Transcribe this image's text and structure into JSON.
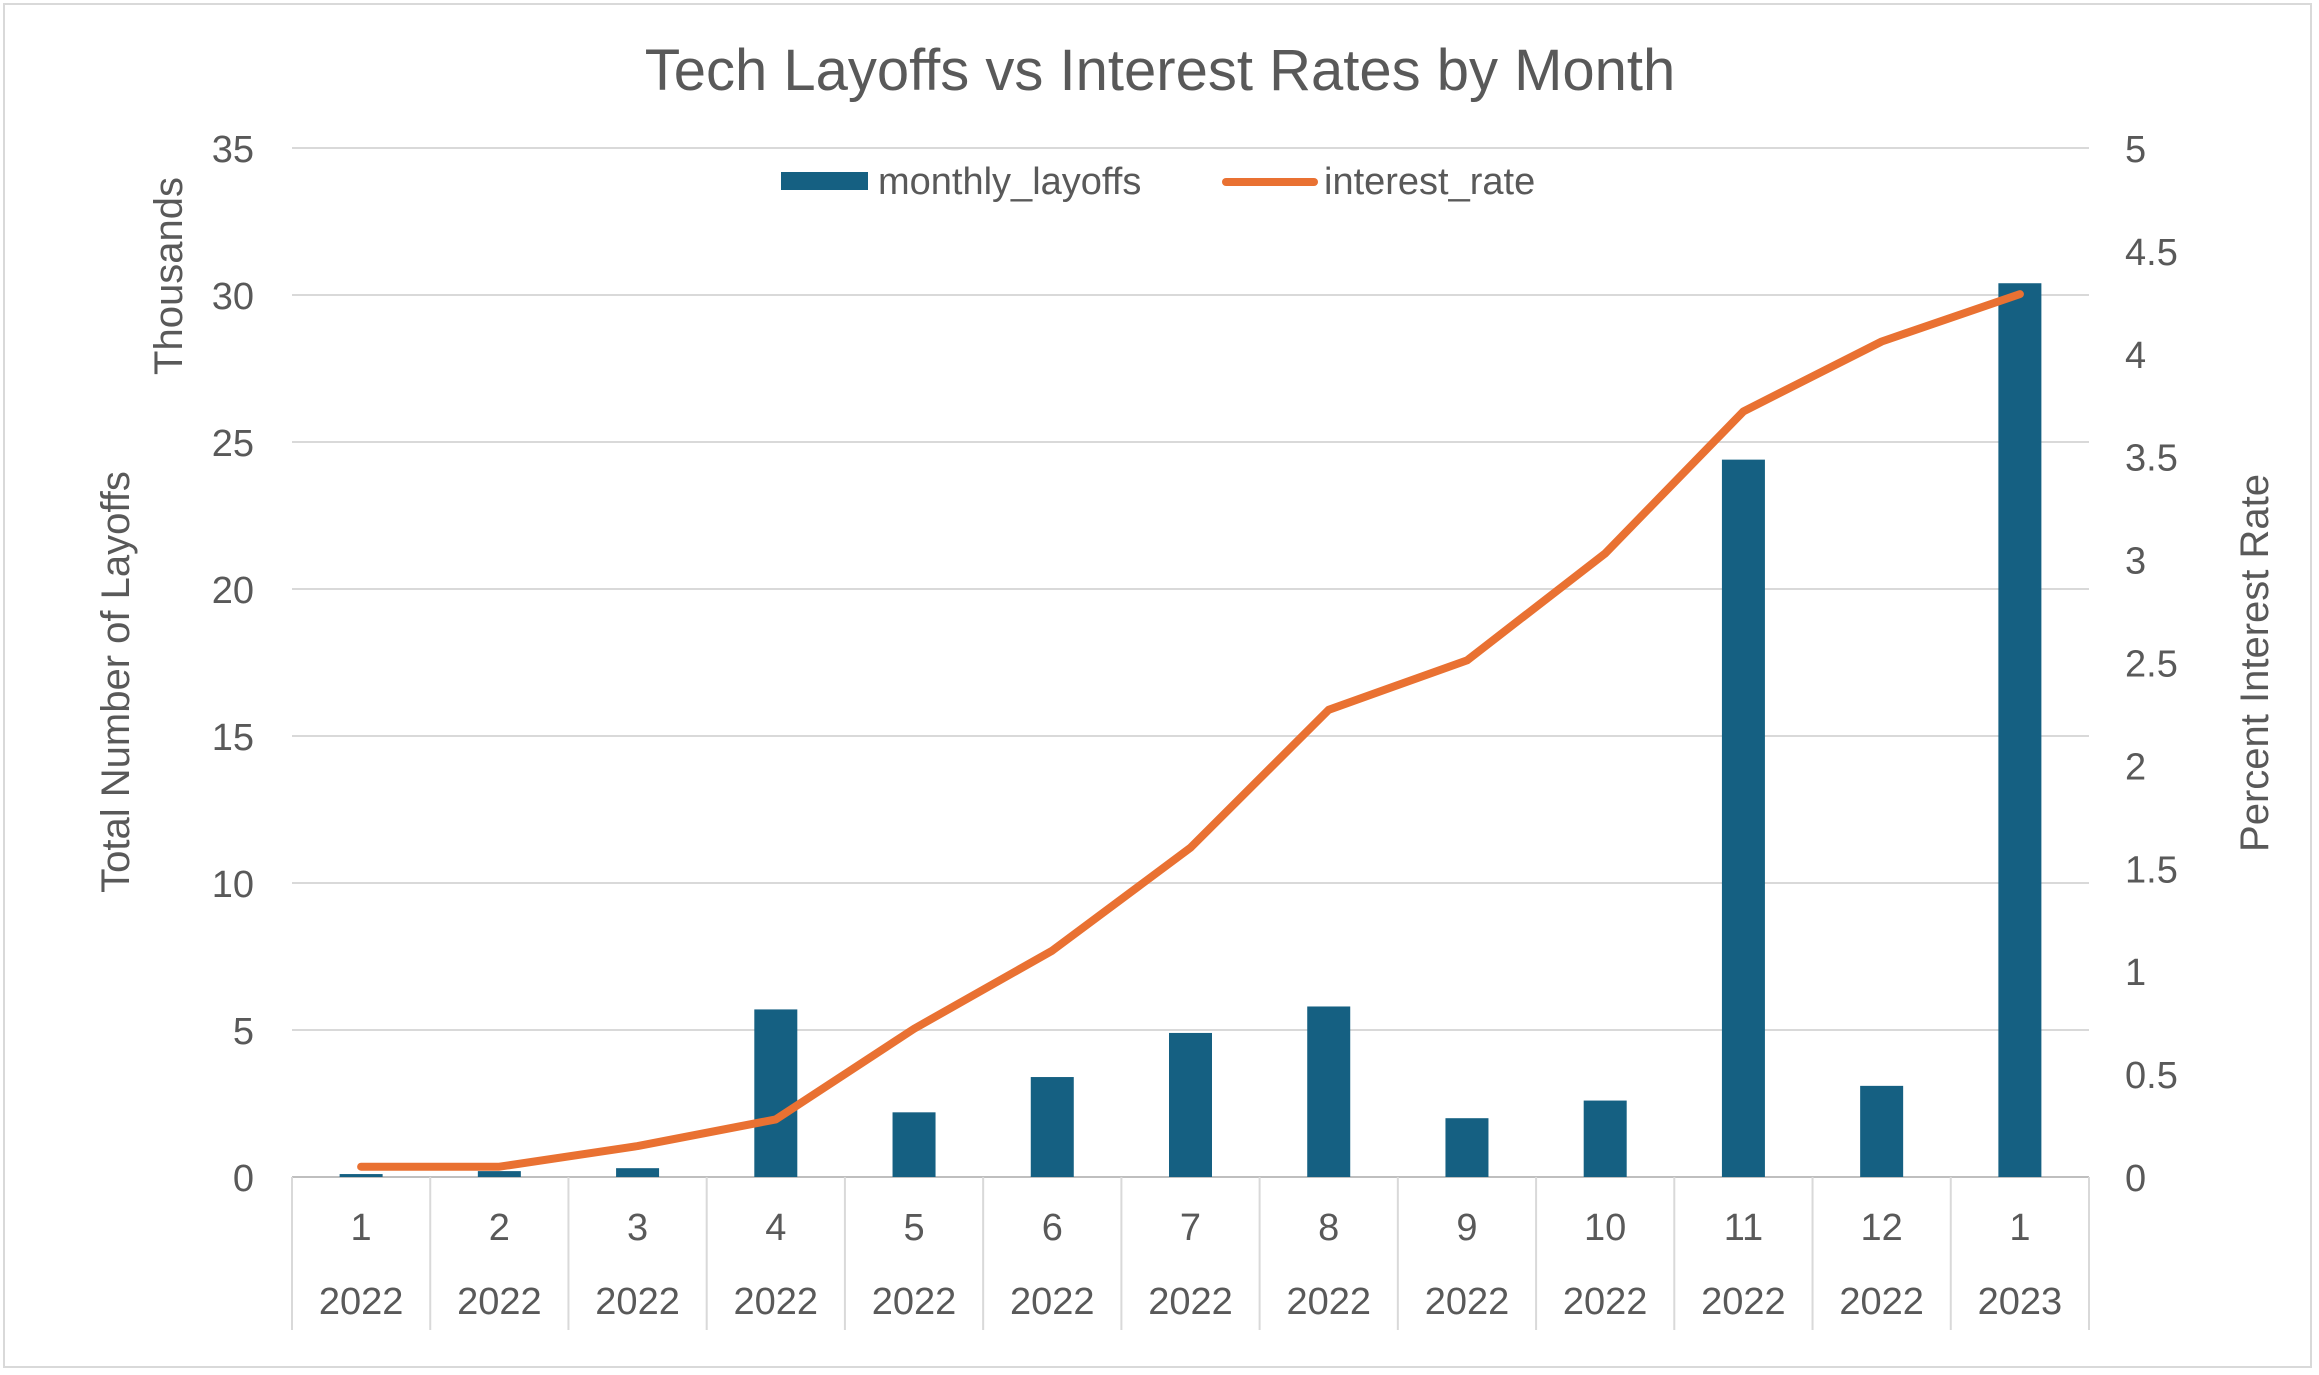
{
  "chart_data": {
    "type": "bar+line",
    "title": "Tech Layoffs vs Interest Rates by Month",
    "y_left_label": "Total Number of Layoffs",
    "y_left_units": "Thousands",
    "y_right_label": "Percent Interest Rate",
    "y_left_ticks": [
      "0",
      "5",
      "10",
      "15",
      "20",
      "25",
      "30",
      "35"
    ],
    "y_left_range": [
      0,
      35
    ],
    "y_right_ticks": [
      "0",
      "0.5",
      "1",
      "1.5",
      "2",
      "2.5",
      "3",
      "3.5",
      "4",
      "4.5",
      "5"
    ],
    "y_right_range": [
      0,
      5
    ],
    "categories": [
      {
        "month": "1",
        "year": "2022"
      },
      {
        "month": "2",
        "year": "2022"
      },
      {
        "month": "3",
        "year": "2022"
      },
      {
        "month": "4",
        "year": "2022"
      },
      {
        "month": "5",
        "year": "2022"
      },
      {
        "month": "6",
        "year": "2022"
      },
      {
        "month": "7",
        "year": "2022"
      },
      {
        "month": "8",
        "year": "2022"
      },
      {
        "month": "9",
        "year": "2022"
      },
      {
        "month": "10",
        "year": "2022"
      },
      {
        "month": "11",
        "year": "2022"
      },
      {
        "month": "12",
        "year": "2022"
      },
      {
        "month": "1",
        "year": "2023"
      }
    ],
    "series": [
      {
        "name": "monthly_layoffs",
        "kind": "bar",
        "axis": "left",
        "color": "#156082",
        "values": [
          0.1,
          0.2,
          0.3,
          5.7,
          2.2,
          3.4,
          4.9,
          5.8,
          2.0,
          2.6,
          24.4,
          3.1,
          30.4
        ]
      },
      {
        "name": "interest_rate",
        "kind": "line",
        "axis": "right",
        "color": "#e97132",
        "values": [
          0.05,
          0.05,
          0.15,
          0.28,
          0.72,
          1.1,
          1.6,
          2.27,
          2.51,
          3.03,
          3.72,
          4.06,
          4.29
        ]
      }
    ],
    "grid": true,
    "legend_position": "top-center"
  }
}
